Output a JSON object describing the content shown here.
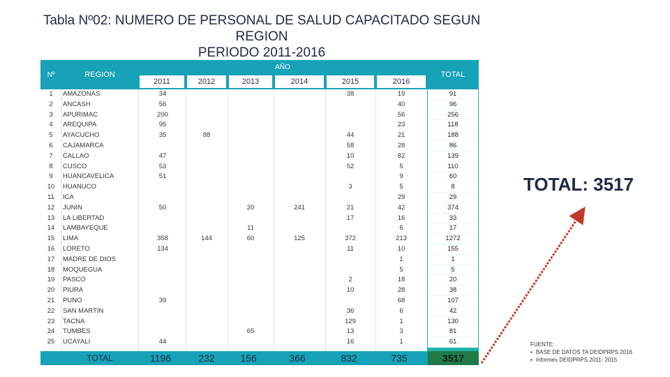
{
  "title": {
    "line1": "Tabla Nº02: NUMERO DE PERSONAL DE SALUD CAPACITADO SEGUN",
    "line2": "REGION",
    "line3": "PERIODO 2011-2016"
  },
  "header": {
    "n": "Nº",
    "region": "REGION",
    "anio": "AÑO",
    "total": "TOTAL",
    "years": [
      "2011",
      "2012",
      "2013",
      "2014",
      "2015",
      "2016"
    ]
  },
  "rows": [
    {
      "n": "1",
      "region": "AMAZONAS",
      "v": [
        "34",
        "",
        "",
        "",
        "38",
        "19"
      ],
      "total": "91"
    },
    {
      "n": "2",
      "region": "ANCASH",
      "v": [
        "56",
        "",
        "",
        "",
        "",
        "40"
      ],
      "total": "96"
    },
    {
      "n": "3",
      "region": "APURIMAC",
      "v": [
        "200",
        "",
        "",
        "",
        "",
        "56"
      ],
      "total": "256"
    },
    {
      "n": "4",
      "region": "AREQUIPA",
      "v": [
        "95",
        "",
        "",
        "",
        "",
        "23"
      ],
      "total": "118"
    },
    {
      "n": "5",
      "region": "AYACUCHO",
      "v": [
        "35",
        "88",
        "",
        "",
        "44",
        "21"
      ],
      "total": "188"
    },
    {
      "n": "6",
      "region": "CAJAMARCA",
      "v": [
        "",
        "",
        "",
        "",
        "58",
        "28"
      ],
      "total": "86"
    },
    {
      "n": "7",
      "region": "CALLAO",
      "v": [
        "47",
        "",
        "",
        "",
        "10",
        "82"
      ],
      "total": "139"
    },
    {
      "n": "8",
      "region": "CUSCO",
      "v": [
        "53",
        "",
        "",
        "",
        "52",
        "5"
      ],
      "total": "110"
    },
    {
      "n": "9",
      "region": "HUANCAVELICA",
      "v": [
        "51",
        "",
        "",
        "",
        "",
        "9"
      ],
      "total": "60"
    },
    {
      "n": "10",
      "region": "HUANUCO",
      "v": [
        "",
        "",
        "",
        "",
        "3",
        "5"
      ],
      "total": "8"
    },
    {
      "n": "11",
      "region": "ICA",
      "v": [
        "",
        "",
        "",
        "",
        "",
        "29"
      ],
      "total": "29"
    },
    {
      "n": "12",
      "region": "JUNIN",
      "v": [
        "50",
        "",
        "20",
        "241",
        "21",
        "42"
      ],
      "total": "374"
    },
    {
      "n": "13",
      "region": "LA LIBERTAD",
      "v": [
        "",
        "",
        "",
        "",
        "17",
        "16"
      ],
      "total": "33"
    },
    {
      "n": "14",
      "region": "LAMBAYEQUE",
      "v": [
        "",
        "",
        "11",
        "",
        "",
        "6"
      ],
      "total": "17"
    },
    {
      "n": "15",
      "region": "LIMA",
      "v": [
        "358",
        "144",
        "60",
        "125",
        "372",
        "213"
      ],
      "total": "1272"
    },
    {
      "n": "16",
      "region": "LORETO",
      "v": [
        "134",
        "",
        "",
        "",
        "11",
        "10"
      ],
      "total": "155"
    },
    {
      "n": "17",
      "region": "MADRE DE DIOS",
      "v": [
        "",
        "",
        "",
        "",
        "",
        "1"
      ],
      "total": "1"
    },
    {
      "n": "18",
      "region": "MOQUEGUA",
      "v": [
        "",
        "",
        "",
        "",
        "",
        "5"
      ],
      "total": "5"
    },
    {
      "n": "19",
      "region": "PASCO",
      "v": [
        "",
        "",
        "",
        "",
        "2",
        "18"
      ],
      "total": "20"
    },
    {
      "n": "20",
      "region": "PIURA",
      "v": [
        "",
        "",
        "",
        "",
        "10",
        "28"
      ],
      "total": "38"
    },
    {
      "n": "21",
      "region": "PUNO",
      "v": [
        "39",
        "",
        "",
        "",
        "",
        "68"
      ],
      "total": "107"
    },
    {
      "n": "22",
      "region": "SAN MARTIN",
      "v": [
        "",
        "",
        "",
        "",
        "36",
        "6"
      ],
      "total": "42"
    },
    {
      "n": "23",
      "region": "TACNA",
      "v": [
        "",
        "",
        "",
        "",
        "129",
        "1"
      ],
      "total": "130"
    },
    {
      "n": "24",
      "region": "TUMBES",
      "v": [
        "",
        "",
        "65",
        "",
        "13",
        "3"
      ],
      "total": "81"
    },
    {
      "n": "25",
      "region": "UCAYALI",
      "v": [
        "44",
        "",
        "",
        "",
        "16",
        "1"
      ],
      "total": "61"
    }
  ],
  "footer": {
    "label": "TOTAL",
    "years": [
      "1196",
      "232",
      "156",
      "366",
      "832",
      "735"
    ],
    "grand": "3517"
  },
  "big_total": "TOTAL: 3517",
  "fuente": {
    "heading": "FUENTE:",
    "items": [
      "BASE DE DATOS TA DEIDPRPS 2016",
      "Informes DEIDPRPS 2011- 2015"
    ]
  },
  "colors": {
    "header_bg": "#17a2b8",
    "total_col": "#1fb3a8",
    "grand_total_bg": "#1f7a48",
    "arrow": "#c0392b"
  }
}
